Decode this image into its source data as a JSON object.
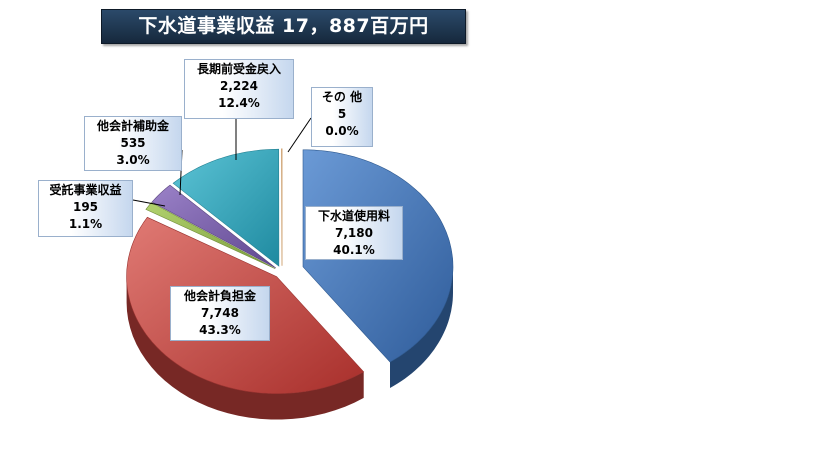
{
  "title": "下水道事業収益 17，887百万円",
  "chart_data": {
    "type": "pie",
    "title": "下水道事業収益 17，887百万円",
    "slices": [
      {
        "name": "下水道使用料",
        "value": 7180,
        "value_label": "7,180",
        "percent_label": "40.1%",
        "color": "#3a6fb3",
        "exploded": true
      },
      {
        "name": "他会計負担金",
        "value": 7748,
        "value_label": "7,748",
        "percent_label": "43.3%",
        "color": "#c0403c",
        "exploded": false
      },
      {
        "name": "受託事業収益",
        "value": 195,
        "value_label": "195",
        "percent_label": "1.1%",
        "color": "#8db04a",
        "exploded": false
      },
      {
        "name": "他会計補助金",
        "value": 535,
        "value_label": "535",
        "percent_label": "3.0%",
        "color": "#7358a0",
        "exploded": false
      },
      {
        "name": "長期前受金戻入",
        "value": 2224,
        "value_label": "2,224",
        "percent_label": "12.4%",
        "color": "#2ea3b8",
        "exploded": false
      },
      {
        "name": "その 他",
        "value": 5,
        "value_label": "5",
        "percent_label": "0.0%",
        "color": "#e08a2c",
        "exploded": false
      }
    ]
  }
}
